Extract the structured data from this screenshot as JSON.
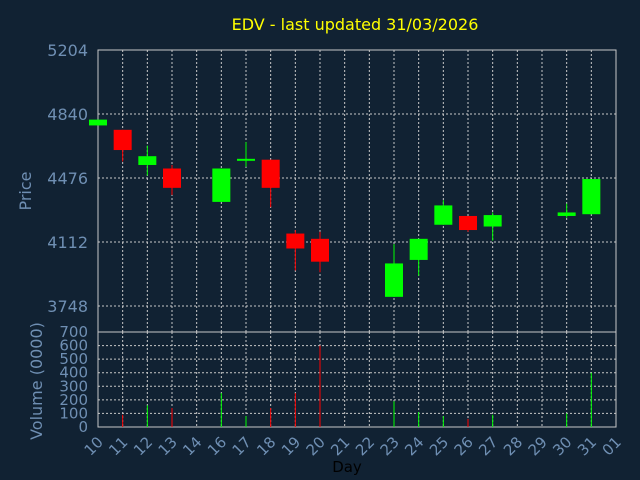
{
  "chart_data": {
    "type": "candlestick",
    "title": "EDV - last updated 31/03/2026",
    "xlabel": "Day",
    "ylabel": "Price",
    "volume_label": "Volume (0000)",
    "y_ticks": [
      3748,
      4112,
      4476,
      4840,
      5204
    ],
    "ylim": [
      3600,
      5204
    ],
    "volume_ticks": [
      0,
      100,
      200,
      300,
      400,
      500,
      600,
      700
    ],
    "volume_ylim": [
      0,
      700
    ],
    "x_ticks": [
      "10",
      "11",
      "12",
      "13",
      "14",
      "16",
      "17",
      "18",
      "19",
      "20",
      "21",
      "22",
      "23",
      "24",
      "25",
      "26",
      "27",
      "28",
      "29",
      "30",
      "31",
      "01"
    ],
    "grid": true,
    "colors": {
      "up": "#00ff00",
      "down": "#ff0000",
      "background": "#112233",
      "grid": "#c8c8c8",
      "text": "#6f8fb3",
      "title": "#ffff00"
    },
    "candles": [
      {
        "day": "10",
        "open": 4775,
        "high": 4808,
        "low": 4775,
        "close": 4808,
        "volume": 0
      },
      {
        "day": "11",
        "open": 4750,
        "high": 4750,
        "low": 4570,
        "close": 4635,
        "volume": 90
      },
      {
        "day": "12",
        "open": 4550,
        "high": 4660,
        "low": 4490,
        "close": 4600,
        "volume": 160
      },
      {
        "day": "13",
        "open": 4530,
        "high": 4550,
        "low": 4380,
        "close": 4420,
        "volume": 140
      },
      {
        "day": "16",
        "open": 4340,
        "high": 4530,
        "low": 4340,
        "close": 4530,
        "volume": 250
      },
      {
        "day": "17",
        "open": 4580,
        "high": 4680,
        "low": 4540,
        "close": 4585,
        "volume": 80
      },
      {
        "day": "18",
        "open": 4580,
        "high": 4580,
        "low": 4310,
        "close": 4420,
        "volume": 140
      },
      {
        "day": "19",
        "open": 4160,
        "high": 4180,
        "low": 3950,
        "close": 4075,
        "volume": 250
      },
      {
        "day": "20",
        "open": 4130,
        "high": 4170,
        "low": 3940,
        "close": 4000,
        "volume": 600
      },
      {
        "day": "23",
        "open": 3800,
        "high": 4100,
        "low": 3800,
        "close": 3990,
        "volume": 190
      },
      {
        "day": "24",
        "open": 4010,
        "high": 4130,
        "low": 3920,
        "close": 4130,
        "volume": 110
      },
      {
        "day": "25",
        "open": 4210,
        "high": 4350,
        "low": 4210,
        "close": 4320,
        "volume": 80
      },
      {
        "day": "26",
        "open": 4260,
        "high": 4260,
        "low": 4170,
        "close": 4180,
        "volume": 60
      },
      {
        "day": "27",
        "open": 4200,
        "high": 4280,
        "low": 4120,
        "close": 4265,
        "volume": 90
      },
      {
        "day": "30",
        "open": 4260,
        "high": 4330,
        "low": 4250,
        "close": 4280,
        "volume": 100
      },
      {
        "day": "31",
        "open": 4270,
        "high": 4470,
        "low": 4270,
        "close": 4470,
        "volume": 400
      }
    ]
  }
}
